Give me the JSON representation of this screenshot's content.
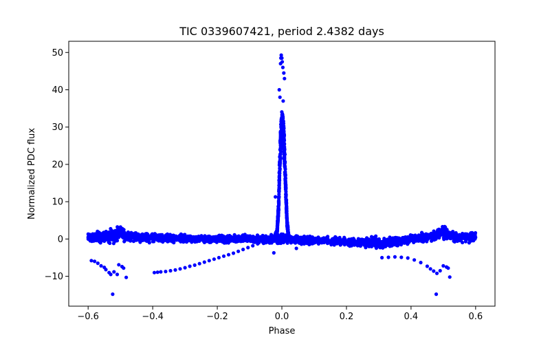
{
  "chart_data": {
    "type": "scatter",
    "title": "TIC 0339607421, period 2.4382 days",
    "xlabel": "Phase",
    "ylabel": "Normalized PDC flux",
    "xlim": [
      -0.66,
      0.66
    ],
    "ylim": [
      -18,
      53
    ],
    "xticks": [
      -0.6,
      -0.4,
      -0.2,
      0.0,
      0.2,
      0.4,
      0.6
    ],
    "xtick_labels": [
      "−0.6",
      "−0.4",
      "−0.2",
      "0.0",
      "0.2",
      "0.4",
      "0.6"
    ],
    "yticks": [
      -10,
      0,
      10,
      20,
      30,
      40,
      50
    ],
    "ytick_labels": [
      "−10",
      "0",
      "10",
      "20",
      "30",
      "40",
      "50"
    ],
    "grid": false,
    "marker_color": "#0000ff",
    "series": [
      {
        "name": "flux",
        "band": [
          [
            -0.6,
            -1.0,
            2.0
          ],
          [
            -0.55,
            -1.5,
            2.5
          ],
          [
            -0.52,
            -1.5,
            3.0
          ],
          [
            -0.5,
            -1.0,
            5.0
          ],
          [
            -0.48,
            -1.2,
            2.5
          ],
          [
            -0.45,
            -1.0,
            2.0
          ],
          [
            -0.4,
            -1.2,
            1.8
          ],
          [
            -0.3,
            -1.3,
            1.5
          ],
          [
            -0.2,
            -1.3,
            1.3
          ],
          [
            -0.1,
            -1.2,
            1.2
          ],
          [
            -0.03,
            -1.5,
            1.5
          ],
          [
            0.03,
            -1.5,
            1.5
          ],
          [
            0.1,
            -1.8,
            1.0
          ],
          [
            0.2,
            -2.2,
            0.8
          ],
          [
            0.3,
            -3.0,
            0.8
          ],
          [
            0.35,
            -2.5,
            1.0
          ],
          [
            0.4,
            -1.5,
            1.5
          ],
          [
            0.45,
            -1.0,
            2.0
          ],
          [
            0.48,
            -1.0,
            3.0
          ],
          [
            0.5,
            -1.0,
            5.0
          ],
          [
            0.52,
            -1.2,
            3.0
          ],
          [
            0.55,
            -1.5,
            2.2
          ],
          [
            0.6,
            -1.2,
            2.2
          ]
        ],
        "peak": [
          [
            -0.024,
            0.0
          ],
          [
            -0.015,
            2.0
          ],
          [
            -0.01,
            10.0
          ],
          [
            -0.007,
            22.0
          ],
          [
            -0.004,
            30.0
          ],
          [
            0.0,
            35.0
          ],
          [
            0.004,
            33.0
          ],
          [
            0.008,
            27.0
          ],
          [
            0.012,
            15.0
          ],
          [
            0.016,
            5.0
          ],
          [
            0.022,
            0.0
          ]
        ],
        "points": [
          [
            -0.59,
            -5.8
          ],
          [
            -0.58,
            -6.0
          ],
          [
            -0.57,
            -6.5
          ],
          [
            -0.56,
            -7.2
          ],
          [
            -0.55,
            -7.6
          ],
          [
            -0.545,
            -8.2
          ],
          [
            -0.535,
            -9.0
          ],
          [
            -0.53,
            -9.5
          ],
          [
            -0.52,
            -8.8
          ],
          [
            -0.524,
            -14.8
          ],
          [
            -0.51,
            -9.5
          ],
          [
            -0.505,
            -6.9
          ],
          [
            -0.495,
            -7.4
          ],
          [
            -0.49,
            -7.8
          ],
          [
            -0.482,
            -10.3
          ],
          [
            -0.395,
            -9.0
          ],
          [
            -0.385,
            -8.9
          ],
          [
            -0.375,
            -8.8
          ],
          [
            -0.36,
            -8.7
          ],
          [
            -0.345,
            -8.5
          ],
          [
            -0.33,
            -8.3
          ],
          [
            -0.315,
            -8.0
          ],
          [
            -0.3,
            -7.7
          ],
          [
            -0.285,
            -7.3
          ],
          [
            -0.27,
            -7.0
          ],
          [
            -0.255,
            -6.6
          ],
          [
            -0.24,
            -6.2
          ],
          [
            -0.225,
            -5.8
          ],
          [
            -0.21,
            -5.4
          ],
          [
            -0.195,
            -5.0
          ],
          [
            -0.18,
            -4.6
          ],
          [
            -0.165,
            -4.2
          ],
          [
            -0.15,
            -3.8
          ],
          [
            -0.135,
            -3.3
          ],
          [
            -0.12,
            -2.8
          ],
          [
            -0.105,
            -2.3
          ],
          [
            -0.09,
            -1.8
          ],
          [
            -0.075,
            -1.3
          ],
          [
            -0.06,
            -0.8
          ],
          [
            -0.025,
            -3.7
          ],
          [
            -0.02,
            11.3
          ],
          [
            0.045,
            -2.5
          ],
          [
            -0.008,
            40.0
          ],
          [
            -0.006,
            38.0
          ],
          [
            -0.004,
            47.0
          ],
          [
            -0.003,
            48.5
          ],
          [
            -0.002,
            49.3
          ],
          [
            0.0,
            48.5
          ],
          [
            0.001,
            47.5
          ],
          [
            0.003,
            46.0
          ],
          [
            0.006,
            44.5
          ],
          [
            0.008,
            43.0
          ],
          [
            0.004,
            37.0
          ],
          [
            0.31,
            -5.0
          ],
          [
            0.33,
            -4.9
          ],
          [
            0.35,
            -4.8
          ],
          [
            0.37,
            -4.9
          ],
          [
            0.39,
            -5.1
          ],
          [
            0.41,
            -5.6
          ],
          [
            0.43,
            -6.3
          ],
          [
            0.45,
            -7.3
          ],
          [
            0.46,
            -8.0
          ],
          [
            0.47,
            -8.6
          ],
          [
            0.48,
            -9.2
          ],
          [
            0.49,
            -8.5
          ],
          [
            0.478,
            -14.8
          ],
          [
            0.5,
            -7.2
          ],
          [
            0.51,
            -7.5
          ],
          [
            0.515,
            -7.8
          ],
          [
            0.52,
            -10.2
          ]
        ]
      }
    ]
  }
}
